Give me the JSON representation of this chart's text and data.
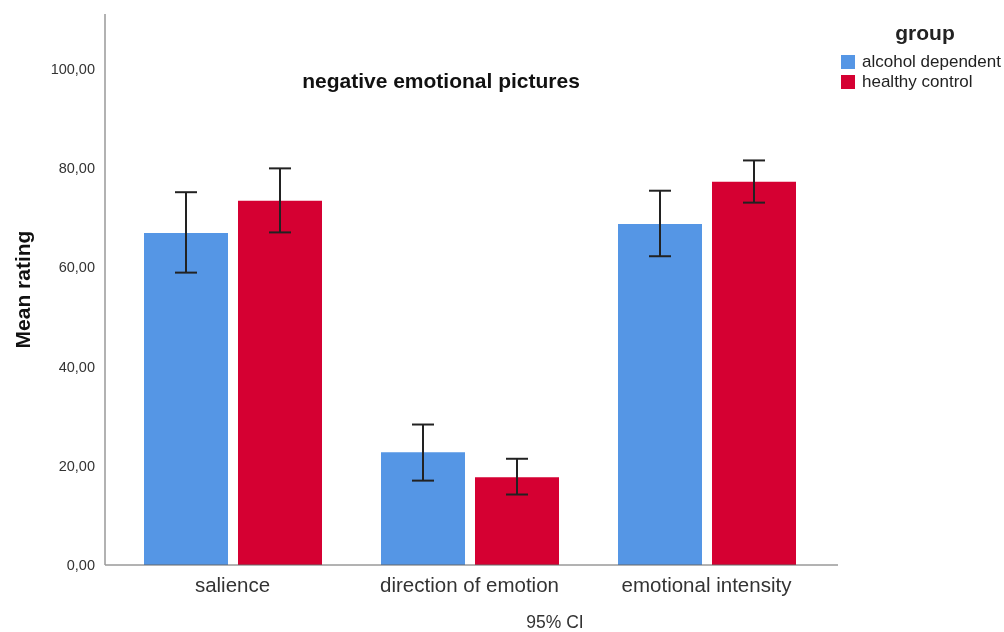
{
  "chart_data": {
    "type": "bar",
    "title": "negative emotional pictures",
    "ylabel": "Mean rating",
    "legend_title": "group",
    "annotations": [
      "95% CI"
    ],
    "categories": [
      "salience",
      "direction of emotion",
      "emotional intensity"
    ],
    "series": [
      {
        "name": "alcohol dependent",
        "color": "#5596e5",
        "values": [
          66.9,
          22.7,
          68.7
        ],
        "errors": [
          [
            58.9,
            75.1
          ],
          [
            17.0,
            28.3
          ],
          [
            62.2,
            75.4
          ]
        ]
      },
      {
        "name": "healthy control",
        "color": "#d50032",
        "values": [
          73.4,
          17.7,
          77.2
        ],
        "errors": [
          [
            67.0,
            79.9
          ],
          [
            14.2,
            21.4
          ],
          [
            73.0,
            81.5
          ]
        ]
      }
    ],
    "ylim": [
      0,
      111
    ],
    "yticks": [
      {
        "value": 0,
        "label": "0,00"
      },
      {
        "value": 20,
        "label": "20,00"
      },
      {
        "value": 40,
        "label": "40,00"
      },
      {
        "value": 60,
        "label": "60,00"
      },
      {
        "value": 80,
        "label": "80,00"
      },
      {
        "value": 100,
        "label": "100,00"
      }
    ],
    "legend": "top right"
  }
}
